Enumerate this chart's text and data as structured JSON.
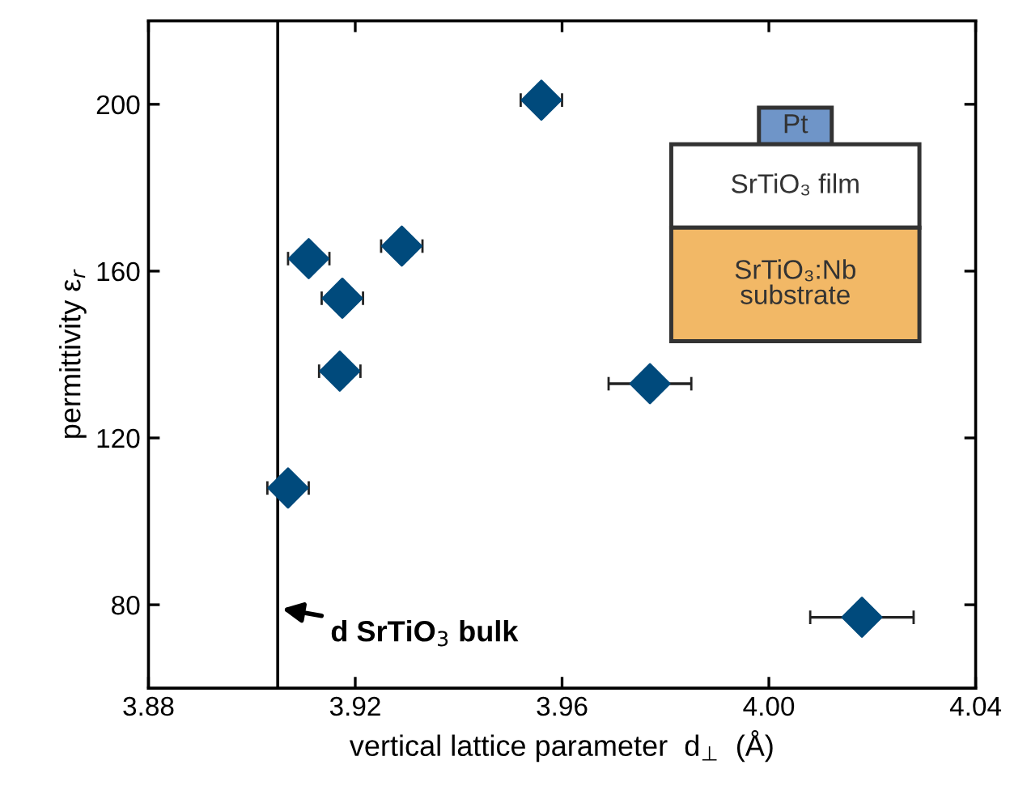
{
  "chart_data": {
    "type": "scatter",
    "xlabel": "vertical lattice parameter  d$_{⊥}$  (Å)",
    "ylabel": "permittivity ε$_{r}$",
    "x": [
      3.956,
      3.929,
      3.911,
      3.9175,
      3.917,
      3.907,
      3.977,
      4.018
    ],
    "series": [
      {
        "color": "#004a7c",
        "values": [
          201,
          166,
          163,
          153.5,
          136,
          108,
          133,
          77
        ],
        "xerrors": [
          0.004,
          0.004,
          0.004,
          0.004,
          0.004,
          0.004,
          0.008,
          0.01
        ]
      }
    ],
    "marker": "diamond",
    "xlim": [
      3.88,
      4.04
    ],
    "xticks": [
      3.88,
      3.92,
      3.96,
      {
        "value": 4.0,
        "label": "4.00"
      },
      4.04
    ],
    "ylim": [
      60,
      220
    ],
    "yticks": [
      80,
      120,
      160,
      200
    ],
    "grid": false,
    "ref_lines": [
      {
        "axis": "x",
        "value": 3.905,
        "label": "d SrTiO$_{3}$ bulk",
        "color": "#000000",
        "line_style": "solid"
      }
    ],
    "annotations": [
      "Pt",
      "SrTiO₃ film",
      "SrTiO₃:Nb\nsubstrate"
    ]
  }
}
